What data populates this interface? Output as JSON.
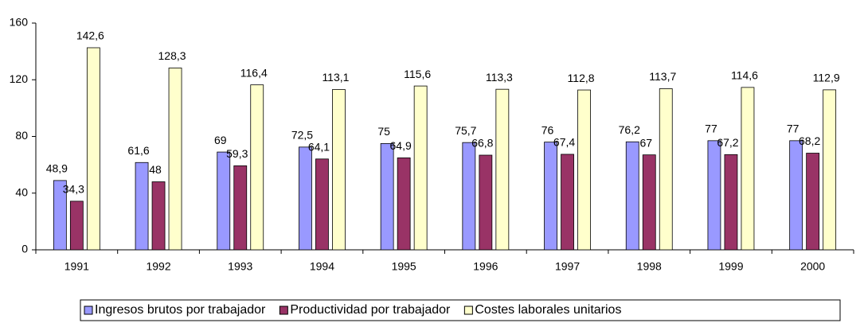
{
  "chart_data": {
    "type": "bar",
    "categories": [
      "1991",
      "1992",
      "1993",
      "1994",
      "1995",
      "1996",
      "1997",
      "1998",
      "1999",
      "2000"
    ],
    "series": [
      {
        "name": "Ingresos brutos por trabajador",
        "color": "#9999ff",
        "values": [
          48.9,
          61.6,
          69,
          72.5,
          75,
          75.7,
          76,
          76.2,
          77,
          77
        ],
        "value_labels": [
          "48,9",
          "61,6",
          "69",
          "72,5",
          "75",
          "75,7",
          "76",
          "76,2",
          "77",
          "77"
        ]
      },
      {
        "name": "Productividad por trabajador",
        "color": "#993366",
        "values": [
          34.3,
          48,
          59.3,
          64.1,
          64.9,
          66.8,
          67.4,
          67,
          67.2,
          68.2
        ],
        "value_labels": [
          "34,3",
          "48",
          "59,3",
          "64,1",
          "64,9",
          "66,8",
          "67,4",
          "67",
          "67,2",
          "68,2"
        ]
      },
      {
        "name": "Costes laborales unitarios",
        "color": "#ffffcc",
        "values": [
          142.6,
          128.3,
          116.4,
          113.1,
          115.6,
          113.3,
          112.8,
          113.7,
          114.6,
          112.9
        ],
        "value_labels": [
          "142,6",
          "128,3",
          "116,4",
          "113,1",
          "115,6",
          "113,3",
          "112,8",
          "113,7",
          "114,6",
          "112,9"
        ]
      }
    ],
    "ylim": [
      0,
      160
    ],
    "yticks": [
      0,
      40,
      80,
      120,
      160
    ],
    "legend": "bottom"
  }
}
